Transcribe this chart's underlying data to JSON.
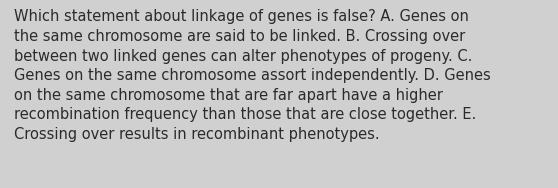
{
  "text": "Which statement about linkage of genes is false? A. Genes on\nthe same chromosome are said to be linked. B. Crossing over\nbetween two linked genes can alter phenotypes of progeny. C.\nGenes on the same chromosome assort independently. D. Genes\non the same chromosome that are far apart have a higher\nrecombination frequency than those that are close together. E.\nCrossing over results in recombinant phenotypes.",
  "background_color": "#d0d0d0",
  "text_color": "#2b2b2b",
  "font_size": 10.5,
  "fig_width": 5.58,
  "fig_height": 1.88,
  "dpi": 100
}
